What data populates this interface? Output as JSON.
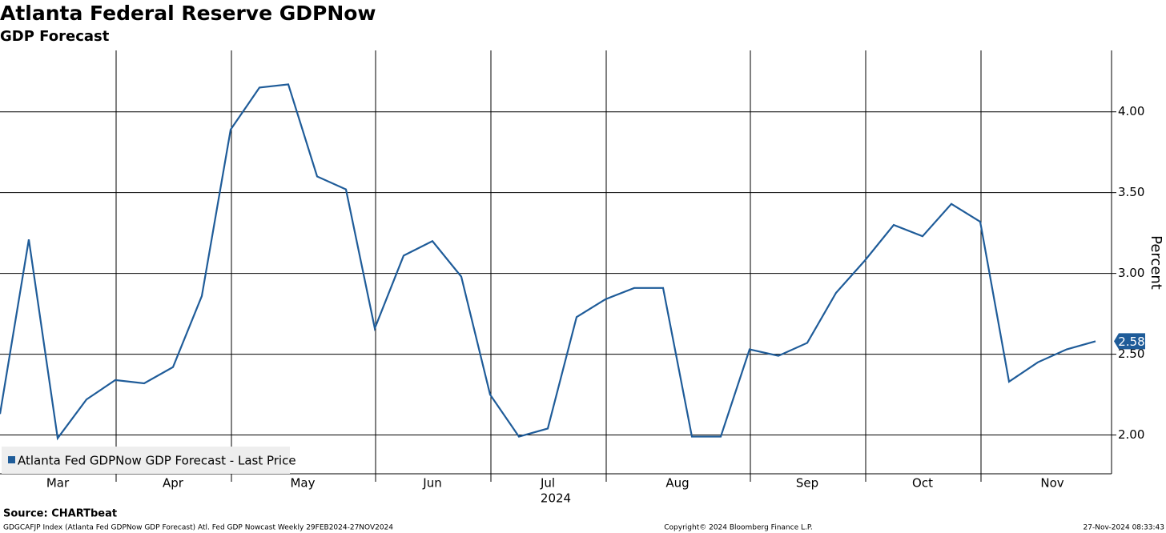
{
  "chart_data": {
    "type": "line",
    "title": "Atlanta Federal Reserve GDPNow",
    "subtitle": "GDP Forecast",
    "y_label": "Percent",
    "x_labels": [
      "Mar",
      "Apr",
      "May",
      "Jun",
      "Jul",
      "Aug",
      "Sep",
      "Oct",
      "Nov"
    ],
    "x_year_label": "2024",
    "series": [
      {
        "name": "Atlanta Fed GDPNow GDP Forecast - Last Price",
        "color": "#1f5c99",
        "values": [
          2.13,
          3.21,
          1.98,
          2.22,
          2.34,
          2.32,
          2.42,
          2.86,
          3.89,
          4.15,
          4.17,
          3.6,
          3.52,
          2.66,
          3.11,
          3.2,
          2.98,
          2.25,
          1.99,
          2.04,
          2.73,
          2.84,
          2.91,
          2.91,
          1.99,
          1.99,
          2.53,
          2.49,
          2.57,
          2.88,
          3.08,
          3.3,
          3.23,
          3.43,
          3.32,
          2.33,
          2.45,
          2.53,
          2.58
        ]
      }
    ],
    "ylim": [
      1.76,
      4.38
    ],
    "yticks": [
      {
        "value": 2,
        "label": "2.00"
      },
      {
        "value": 2.5,
        "label": "2.50"
      },
      {
        "value": 3,
        "label": "3.00"
      },
      {
        "value": 3.5,
        "label": "3.50"
      },
      {
        "value": 4,
        "label": "4.00"
      }
    ],
    "grid": true,
    "legend": "lower left",
    "source": "Source: CHARTbeat",
    "footer_left": "GDGCAFJP Index (Atlanta Fed GDPNow GDP Forecast) Atl. Fed GDP Nowcast  Weekly 29FEB2024-27NOV2024",
    "footer_center": "Copyright© 2024 Bloomberg Finance L.P.",
    "footer_right": "27-Nov-2024 08:33:43"
  }
}
